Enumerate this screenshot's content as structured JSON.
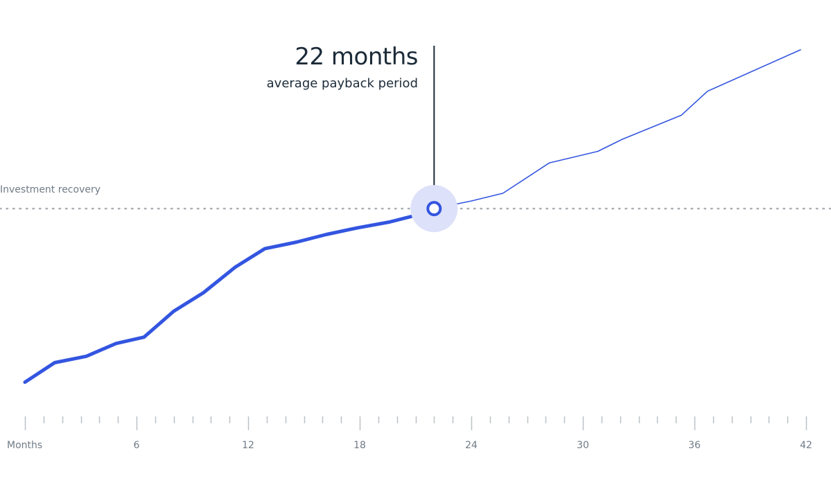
{
  "chart_data": {
    "type": "line",
    "x": [
      0,
      1.6,
      3.3,
      4.9,
      6.4,
      8.0,
      9.6,
      11.3,
      12.9,
      14.6,
      16.2,
      17.9,
      19.6,
      21.3,
      22,
      24,
      25.7,
      28.2,
      30.8,
      32.1,
      35.3,
      36.7,
      41.7
    ],
    "values": [
      16.4,
      26.6,
      29.9,
      36.6,
      39.9,
      53.4,
      63.1,
      76.4,
      86.1,
      89.5,
      93.5,
      97.0,
      100.0,
      104.2,
      107.0,
      111.0,
      115.0,
      130.9,
      136.9,
      143.1,
      155.8,
      168.3,
      189.9
    ],
    "payback_x": 22,
    "xlabel": "Months",
    "x_ticks": [
      6,
      12,
      18,
      24,
      30,
      36,
      42
    ],
    "xlim": [
      0,
      42
    ],
    "ylim": [
      0,
      200
    ],
    "reference_value": 107.0,
    "grid": false,
    "colors": {
      "line": "#3355e0",
      "halo": "#dde1f9",
      "reference": "#a9aeb3",
      "annotation": "#1c2b39"
    }
  },
  "annotation": {
    "value": "22 months",
    "caption": "average payback period"
  },
  "reference_label": "Investment recovery"
}
